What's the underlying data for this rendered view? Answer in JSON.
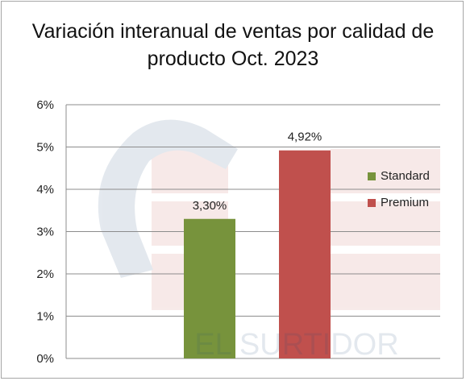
{
  "chart_data": {
    "type": "bar",
    "title_line1": "Variación interanual de ventas por calidad de",
    "title_line2": "producto Oct. 2023",
    "categories": [
      ""
    ],
    "series": [
      {
        "name": "Standard",
        "values": [
          3.3
        ],
        "label": "3,30%",
        "color": "#77933c"
      },
      {
        "name": "Premium",
        "values": [
          4.92
        ],
        "label": "4,92%",
        "color": "#c0504d"
      }
    ],
    "ylim": [
      0,
      6
    ],
    "yticks": [
      "0%",
      "1%",
      "2%",
      "3%",
      "4%",
      "5%",
      "6%"
    ],
    "grid": true,
    "legend_position": "right",
    "watermark": "EL SURTIDOR"
  }
}
